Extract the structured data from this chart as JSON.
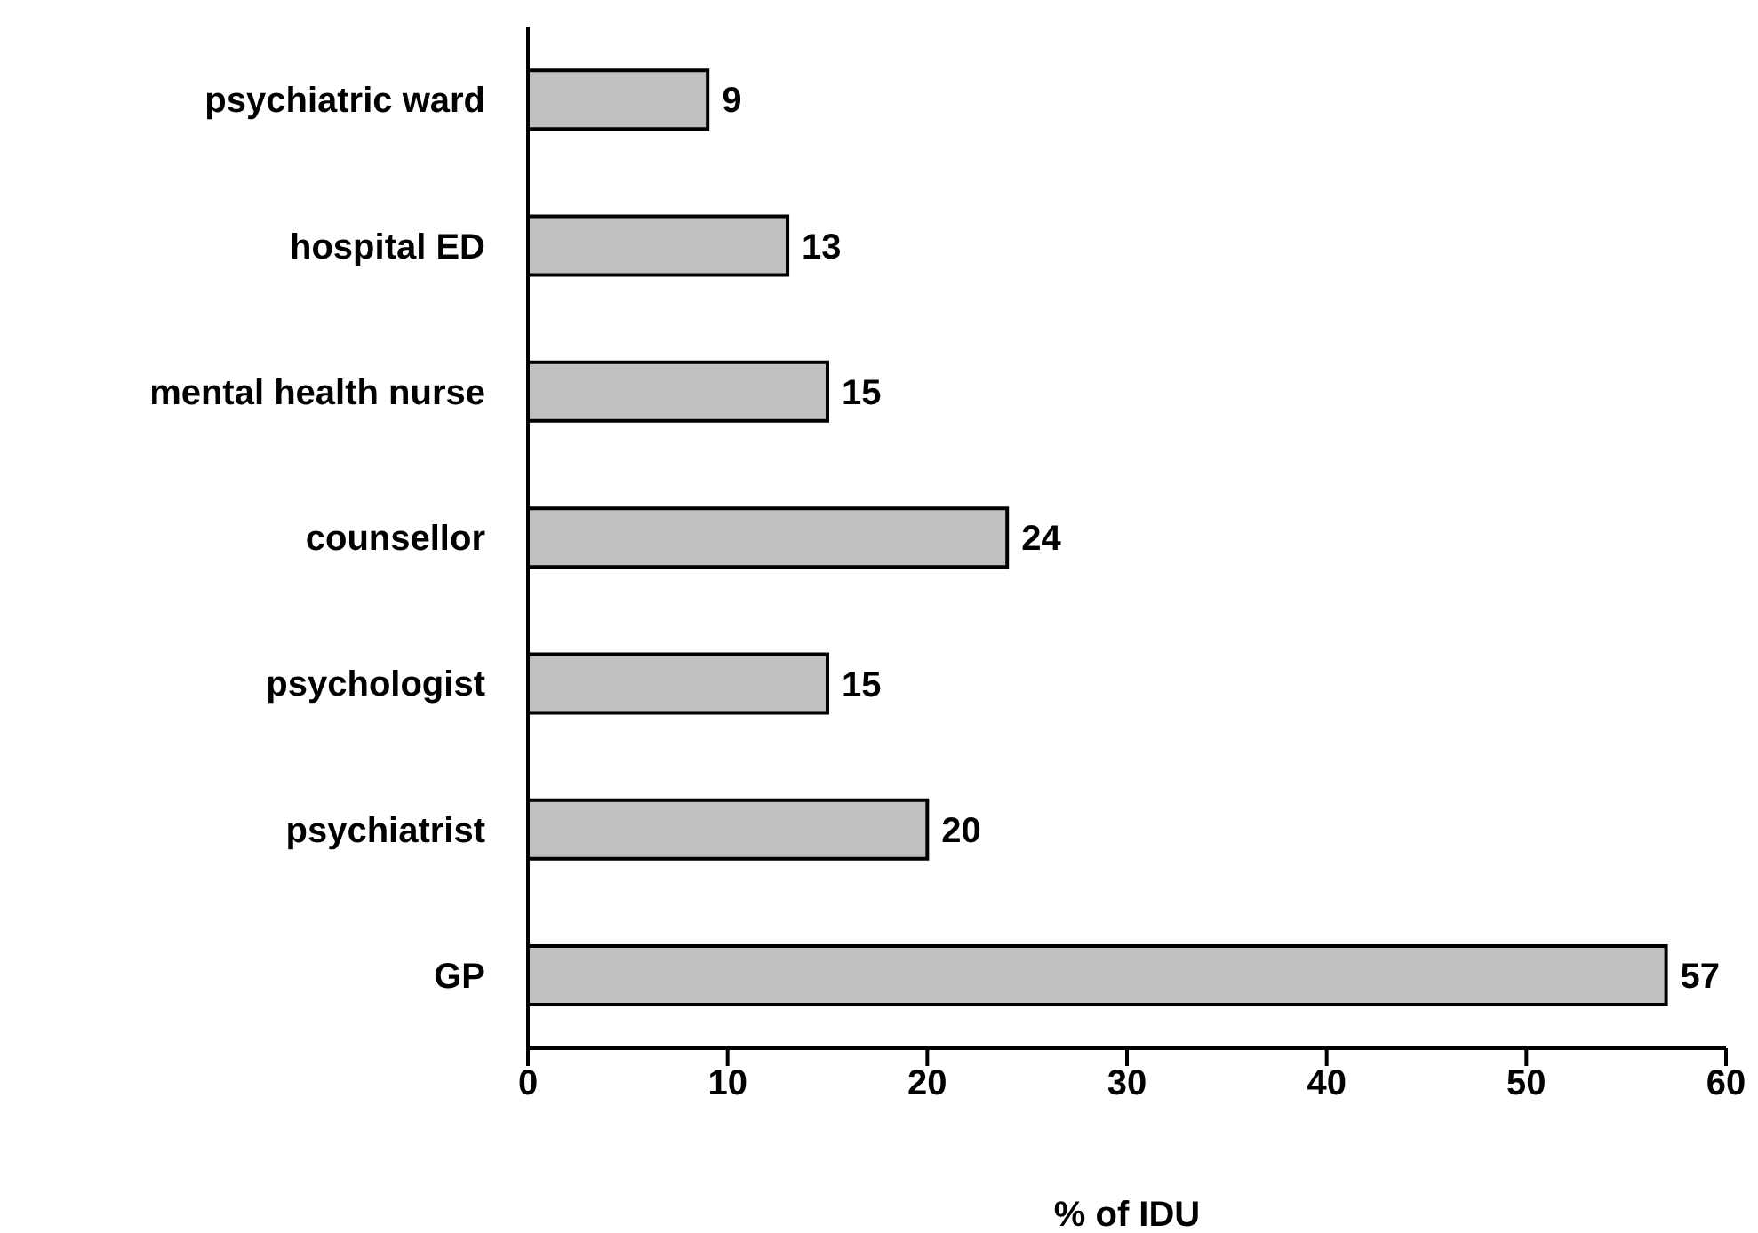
{
  "chart_data": {
    "type": "bar",
    "orientation": "horizontal",
    "xlabel": "% of IDU",
    "categories": [
      "psychiatric ward",
      "hospital ED",
      "mental health nurse",
      "counsellor",
      "psychologist",
      "psychiatrist",
      "GP"
    ],
    "values": [
      9,
      13,
      15,
      24,
      15,
      20,
      57
    ],
    "color": "#c0c0c0",
    "xlim": [
      0,
      60
    ],
    "xticks": [
      0,
      10,
      20,
      30,
      40,
      50,
      60
    ],
    "grid": false,
    "data_labels": true
  }
}
